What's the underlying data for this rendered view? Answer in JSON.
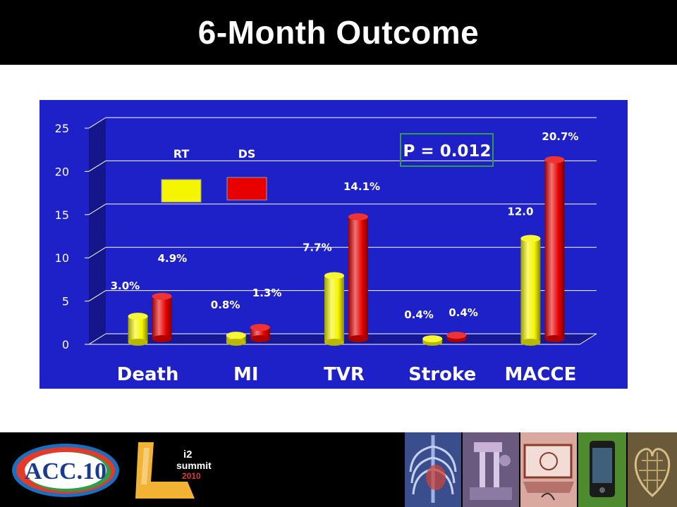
{
  "slide": {
    "title": "6-Month Outcome"
  },
  "colors": {
    "chart_background": "#1E20C8",
    "rt_bar": "#F5F500",
    "ds_bar": "#E80000",
    "title_bar": "#000000",
    "pvalue_border": "#2E9E4A"
  },
  "chart_data": {
    "type": "bar",
    "categories": [
      "Death",
      "MI",
      "TVR",
      "Stroke",
      "MACCE"
    ],
    "series": [
      {
        "name": "RT",
        "values": [
          3.0,
          0.8,
          7.7,
          0.4,
          12.0
        ],
        "labels": [
          "3.0%",
          "0.8%",
          "7.7%",
          "0.4%",
          "12.0"
        ]
      },
      {
        "name": "DS",
        "values": [
          4.9,
          1.3,
          14.1,
          0.4,
          20.7
        ],
        "labels": [
          "4.9%",
          "1.3%",
          "14.1%",
          "0.4%",
          "20.7%"
        ]
      }
    ],
    "yticks": [
      "0",
      "5",
      "10",
      "15",
      "20",
      "25"
    ],
    "ylim": [
      0,
      25
    ],
    "legend": {
      "placement": "top-left"
    },
    "annotation": "P = 0.012",
    "grid": true
  },
  "footer": {
    "acc_logo_text": "ACC.10",
    "i2_logo_top": "i2",
    "i2_logo_mid": "summit",
    "i2_logo_year": "2010",
    "icons": [
      "chest-xray-icon",
      "robotic-surgery-icon",
      "laptop-icon",
      "smartphone-icon",
      "heart-mesh-icon"
    ]
  }
}
